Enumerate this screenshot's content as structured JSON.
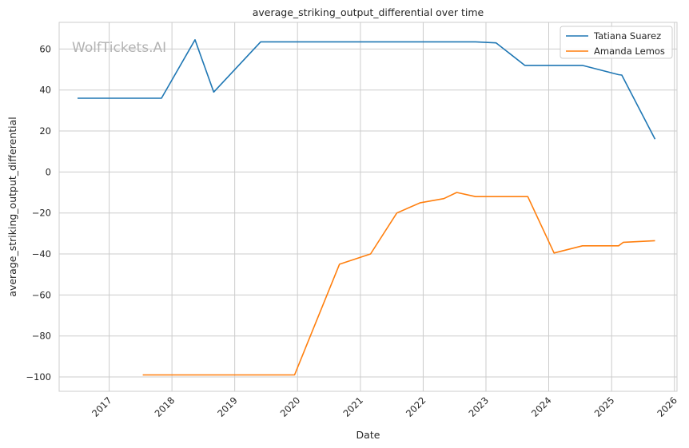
{
  "chart_data": {
    "type": "line",
    "title": "average_striking_output_differential over time",
    "xlabel": "Date",
    "ylabel": "average_striking_output_differential",
    "watermark": "WolfTickets.AI",
    "x_ticks": [
      "2017",
      "2018",
      "2019",
      "2020",
      "2021",
      "2022",
      "2023",
      "2024",
      "2025",
      "2026"
    ],
    "y_ticks": [
      "60",
      "40",
      "20",
      "0",
      "−20",
      "−40",
      "−60",
      "−80",
      "−100"
    ],
    "xlim": [
      "2016-03-16",
      "2026-01-16"
    ],
    "ylim": [
      -107,
      73
    ],
    "grid": true,
    "legend_position": "top-right",
    "series": [
      {
        "name": "Tatiana Suarez",
        "color": "#1f77b4",
        "points": [
          [
            "2016-07-01",
            36
          ],
          [
            "2017-11-01",
            36
          ],
          [
            "2018-05-15",
            64.5
          ],
          [
            "2018-09-01",
            39
          ],
          [
            "2019-06-01",
            63.5
          ],
          [
            "2022-11-01",
            63.5
          ],
          [
            "2023-03-01",
            63
          ],
          [
            "2023-08-15",
            52
          ],
          [
            "2024-07-15",
            52
          ],
          [
            "2025-02-10",
            47.5
          ],
          [
            "2025-03-01",
            47.3
          ],
          [
            "2025-09-10",
            16
          ]
        ]
      },
      {
        "name": "Amanda Lemos",
        "color": "#ff7f0e",
        "points": [
          [
            "2017-07-15",
            -99
          ],
          [
            "2019-12-15",
            -99
          ],
          [
            "2020-09-01",
            -45
          ],
          [
            "2021-03-01",
            -40
          ],
          [
            "2021-08-01",
            -20
          ],
          [
            "2021-12-15",
            -15
          ],
          [
            "2022-05-01",
            -13
          ],
          [
            "2022-07-15",
            -10
          ],
          [
            "2022-11-01",
            -12
          ],
          [
            "2023-09-01",
            -12
          ],
          [
            "2024-02-01",
            -39.5
          ],
          [
            "2024-07-15",
            -36
          ],
          [
            "2025-02-10",
            -36
          ],
          [
            "2025-03-10",
            -34.3
          ],
          [
            "2025-09-10",
            -33.5
          ]
        ]
      }
    ]
  }
}
